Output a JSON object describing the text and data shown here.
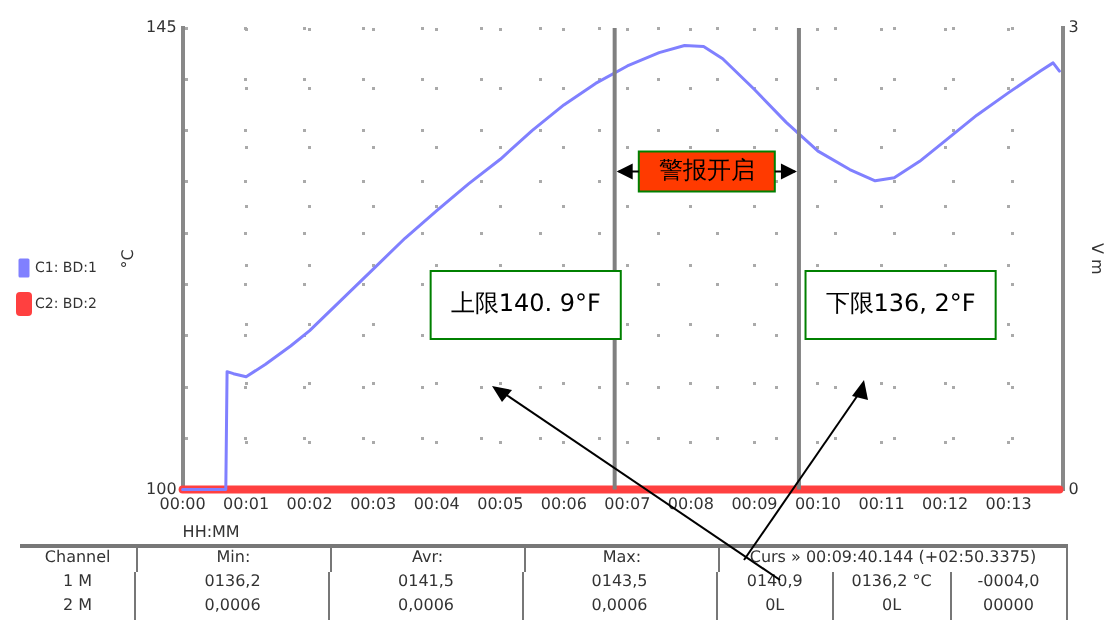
{
  "chart_data": {
    "type": "line",
    "xlabel": "HH:MM",
    "ylabel": "°C",
    "y2label": "V m",
    "xlim": [
      0,
      13.85
    ],
    "xticks": [
      {
        "value": 0,
        "label": "00:00"
      },
      {
        "value": 1,
        "label": "00:01"
      },
      {
        "value": 2,
        "label": "00:02"
      },
      {
        "value": 3,
        "label": "00:03"
      },
      {
        "value": 4,
        "label": "00:04"
      },
      {
        "value": 5,
        "label": "00:05"
      },
      {
        "value": 6,
        "label": "00:06"
      },
      {
        "value": 7,
        "label": "00:07"
      },
      {
        "value": 8,
        "label": "00:08"
      },
      {
        "value": 9,
        "label": "00:09"
      },
      {
        "value": 10,
        "label": "00:10"
      },
      {
        "value": 11,
        "label": "00:11"
      },
      {
        "value": 12,
        "label": "00:12"
      },
      {
        "value": 13,
        "label": "00:13"
      }
    ],
    "ylim": [
      100,
      145
    ],
    "yticks": [
      100,
      {
        "value": 105,
        "label": null
      },
      {
        "value": 110,
        "label": null
      },
      {
        "value": 115,
        "label": null
      },
      {
        "value": 120,
        "label": null
      },
      {
        "value": 125,
        "label": null
      },
      {
        "value": 130,
        "label": null
      },
      {
        "value": 135,
        "label": null
      },
      {
        "value": 140,
        "label": null
      },
      145
    ],
    "y2lim": [
      0,
      3
    ],
    "y2ticks": [
      0,
      3
    ],
    "x": [
      0,
      0.68,
      0.7,
      0.8,
      1.0,
      1.3,
      1.7,
      2,
      2.5,
      3,
      3.5,
      4,
      4.5,
      5,
      5.5,
      6,
      6.5,
      7,
      7.5,
      7.9,
      8.2,
      8.5,
      9,
      9.5,
      10,
      10.5,
      10.9,
      11.2,
      11.6,
      12,
      12.5,
      13,
      13.5,
      13.7,
      13.8
    ],
    "series": [
      {
        "name": "C1: BD:1",
        "color": "#8080ff",
        "values": [
          100,
          100,
          111.5,
          111.3,
          111.0,
          112.2,
          114.0,
          115.5,
          118.5,
          121.5,
          124.5,
          127.2,
          129.8,
          132.2,
          135,
          137.5,
          139.6,
          141.3,
          142.6,
          143.3,
          143.2,
          142.0,
          139.0,
          135.8,
          133.0,
          131.2,
          130.1,
          130.4,
          132.0,
          134.0,
          136.5,
          138.7,
          140.8,
          141.6,
          140.8
        ]
      },
      {
        "name": "C2: BD:2",
        "color": "#ff4040",
        "axis": "y2",
        "values": [
          0,
          0,
          0,
          0,
          0,
          0,
          0,
          0,
          0,
          0,
          0,
          0,
          0,
          0,
          0,
          0,
          0,
          0,
          0,
          0,
          0,
          0,
          0,
          0,
          0,
          0,
          0,
          0,
          0,
          0,
          0,
          0,
          0,
          0,
          0
        ]
      }
    ],
    "ref_lines": [
      {
        "axis": "x",
        "value": 6.8,
        "color": "#808080"
      },
      {
        "axis": "x",
        "value": 9.7,
        "color": "#808080"
      }
    ],
    "annotations": [
      "警报开启",
      "上限140. 9°F",
      "下限136, 2°F",
      "Channel",
      "Min:",
      "Avr:",
      "Max:",
      "Curs » 00:09:40.144 (+02:50.3375)",
      "1 M",
      "0136,2",
      "0141,5",
      "0143,5",
      "0140,9",
      "0136,2 °C",
      "-0004,0",
      "2 M",
      "0,0006",
      "0,0006",
      "0,0006",
      "0L",
      "0L",
      "00000"
    ],
    "grid": true,
    "legend": "left"
  }
}
